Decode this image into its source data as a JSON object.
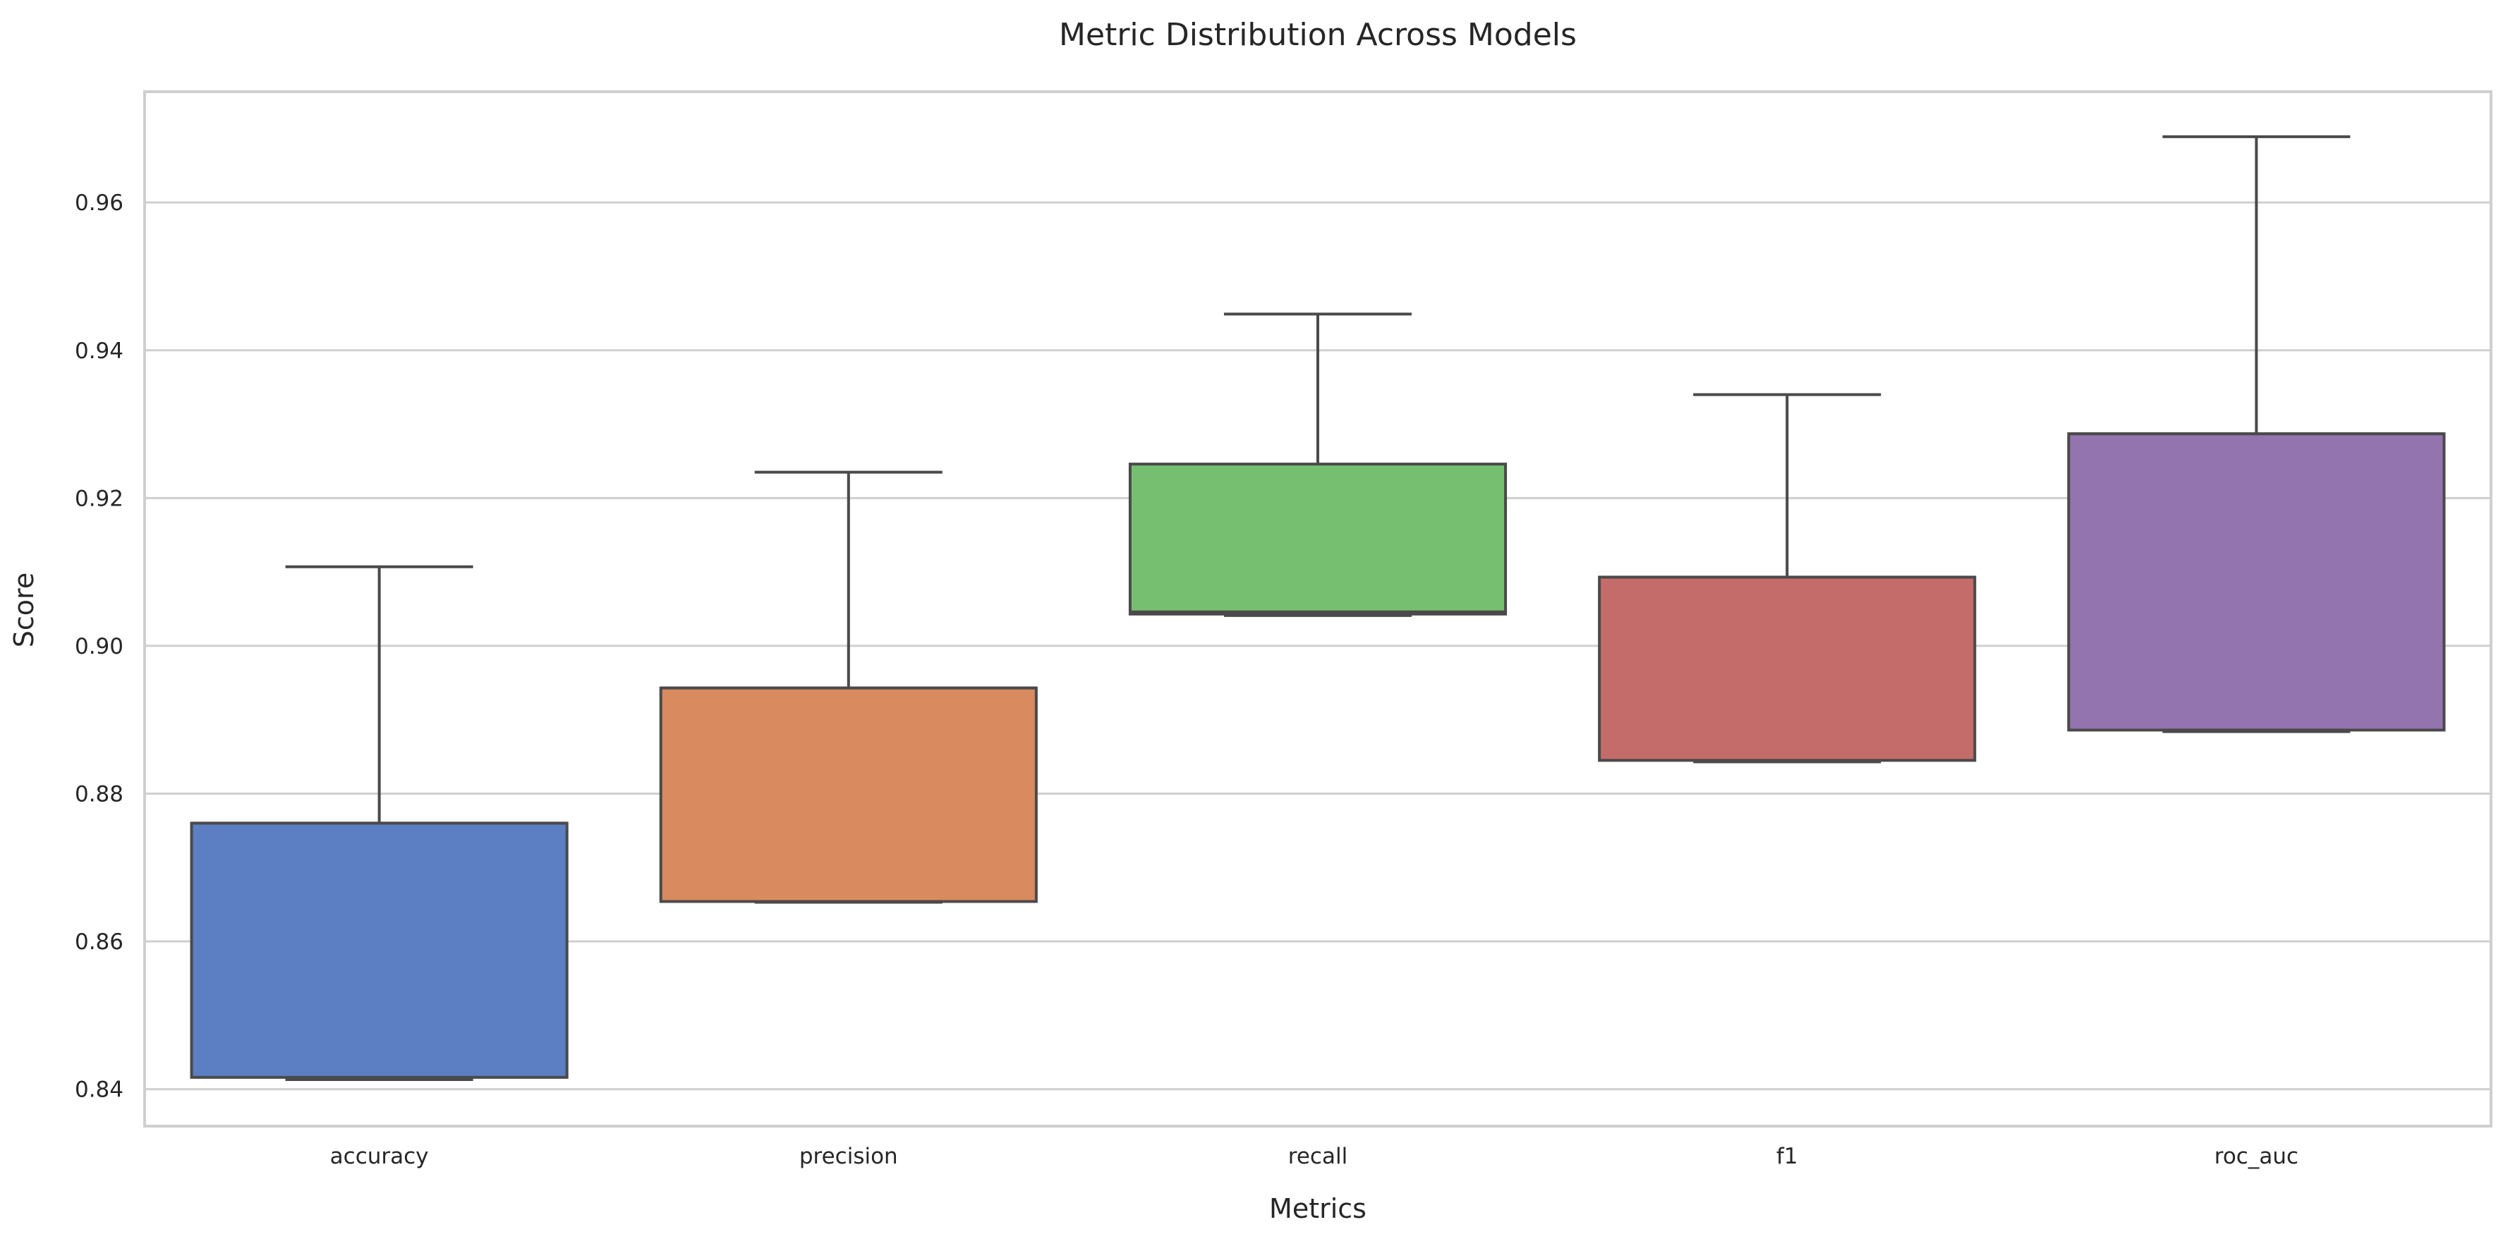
{
  "chart_data": {
    "type": "box",
    "title": "Metric Distribution Across Models",
    "xlabel": "Metrics",
    "ylabel": "Score",
    "categories": [
      "accuracy",
      "precision",
      "recall",
      "f1",
      "roc_auc"
    ],
    "ylim": [
      0.835,
      0.975
    ],
    "yticks": [
      0.84,
      0.86,
      0.88,
      0.9,
      0.92,
      0.94,
      0.96
    ],
    "ytick_labels": [
      "0.84",
      "0.86",
      "0.88",
      "0.90",
      "0.92",
      "0.94",
      "0.96"
    ],
    "grid": true,
    "series": [
      {
        "category": "accuracy",
        "min": 0.8413,
        "q1": 0.8416,
        "median": 0.876,
        "q3": 0.876,
        "max": 0.9107,
        "color": "#5b7fc2"
      },
      {
        "category": "precision",
        "min": 0.8653,
        "q1": 0.8654,
        "median": 0.8943,
        "q3": 0.8943,
        "max": 0.9235,
        "color": "#d98b5f"
      },
      {
        "category": "recall",
        "min": 0.9041,
        "q1": 0.9043,
        "median": 0.9046,
        "q3": 0.9246,
        "max": 0.9449,
        "color": "#76bf71"
      },
      {
        "category": "f1",
        "min": 0.8843,
        "q1": 0.8845,
        "median": 0.9093,
        "q3": 0.9093,
        "max": 0.934,
        "color": "#c46c6a"
      },
      {
        "category": "roc_auc",
        "min": 0.8884,
        "q1": 0.8886,
        "median": 0.9287,
        "q3": 0.9287,
        "max": 0.9689,
        "color": "#9474ae"
      }
    ]
  }
}
